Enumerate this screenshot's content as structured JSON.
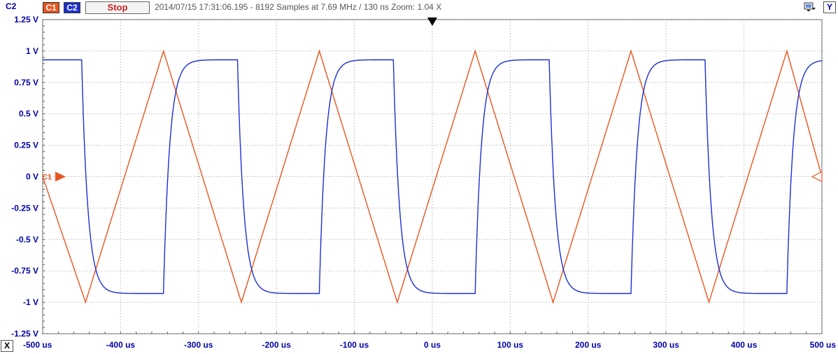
{
  "toolbar": {
    "axis_channel": "C2",
    "c1_label": "C1",
    "c2_label": "C2",
    "stop_label": "Stop",
    "info": "2014/07/15  17:31:06.195 - 8192 Samples at 7.69 MHz / 130 ns  Zoom: 1.04 X",
    "y_button": "Y",
    "x_button": "X",
    "display_icon": "display-settings-icon",
    "trigger_marker_icon": "trigger-position-icon",
    "c1_marker_label": "C1"
  },
  "colors": {
    "c1": "#e8551e",
    "c2": "#1c2fd0",
    "axis_text": "#0000aa",
    "grid": "#9a9a9a"
  },
  "chart_data": {
    "type": "line",
    "x_unit": "us",
    "xlim": [
      -500,
      500
    ],
    "ylim": [
      -1.25,
      1.25
    ],
    "grid": true,
    "x_ticks": [
      -500,
      -400,
      -300,
      -200,
      -100,
      0,
      100,
      200,
      300,
      400,
      500
    ],
    "x_tick_labels": [
      "-500 us",
      "-400 us",
      "-300 us",
      "-200 us",
      "-100 us",
      "0 us",
      "100 us",
      "200 us",
      "300 us",
      "400 us",
      "500 us"
    ],
    "y_ticks": [
      1.25,
      1,
      0.75,
      0.5,
      0.25,
      0,
      -0.25,
      -0.5,
      -0.75,
      -1,
      -1.25
    ],
    "y_tick_labels": [
      "1.25 V",
      "1 V",
      "0.75 V",
      "0.5 V",
      "0.25 V",
      "0 V",
      "-0.25 V",
      "-0.5 V",
      "-0.75 V",
      "-1 V",
      "-1.25 V"
    ],
    "series": [
      {
        "name": "C1",
        "shape": "triangle",
        "x": [
          -500,
          -445,
          -345,
          -245,
          -145,
          -45,
          55,
          155,
          255,
          355,
          455,
          500
        ],
        "y": [
          0,
          -1,
          1,
          -1,
          1,
          -1,
          1,
          -1,
          1,
          -1,
          1,
          0
        ]
      },
      {
        "name": "C2",
        "shape": "square",
        "high": 0.93,
        "low": -0.93,
        "fall_edges": [
          -450,
          -250,
          -50,
          150,
          350
        ],
        "rise_edges": [
          -345,
          -145,
          55,
          255,
          455
        ],
        "time_constant": 8
      }
    ]
  }
}
